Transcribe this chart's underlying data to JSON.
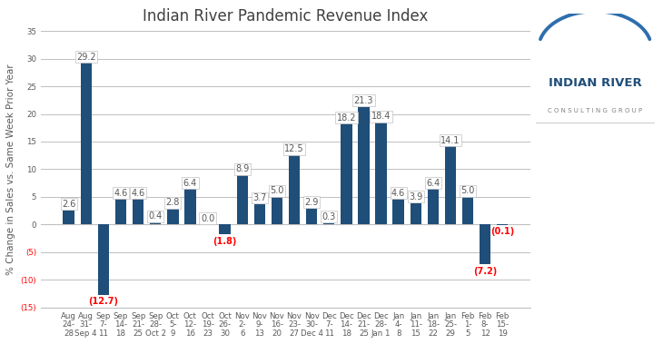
{
  "title": "Indian River Pandemic Revenue Index",
  "ylabel": "% Change in Sales vs. Same Week Prior Year",
  "categories": [
    "Aug\n24-\n28",
    "Aug\n31-\nSep 4",
    "Sep\n7-\n11",
    "Sep\n14-\n18",
    "Sep\n21-\n25",
    "Sep\n28-\nOct 2",
    "Oct\n5-\n9",
    "Oct\n12-\n16",
    "Oct\n19-\n23",
    "Oct\n26-\n30",
    "Nov\n2-\n6",
    "Nov\n9-\n13",
    "Nov\n16-\n20",
    "Nov\n23-\n27",
    "Nov\n30-\nDec 4",
    "Dec\n7-\n11",
    "Dec\n14-\n18",
    "Dec\n21-\n25",
    "Dec\n28-\nJan 1",
    "Jan\n4-\n8",
    "Jan\n11-\n15",
    "Jan\n18-\n22",
    "Jan\n25-\n29",
    "Feb\n1-\n5",
    "Feb\n8-\n12",
    "Feb\n15-\n19"
  ],
  "values": [
    2.6,
    29.2,
    -12.7,
    4.6,
    4.6,
    0.4,
    2.8,
    6.4,
    0.0,
    -1.8,
    8.9,
    3.7,
    5.0,
    12.5,
    2.9,
    0.3,
    18.2,
    21.3,
    18.4,
    4.6,
    3.9,
    6.4,
    14.1,
    5.0,
    -7.2,
    -0.1
  ],
  "bar_color": "#1F4E79",
  "label_color_pos": "#595959",
  "label_color_neg": "#FF0000",
  "ylim": [
    -15,
    35
  ],
  "yticks": [
    -15,
    -10,
    -5,
    0,
    5,
    10,
    15,
    20,
    25,
    30,
    35
  ],
  "background_color": "#FFFFFF",
  "grid_color": "#BFBFBF",
  "title_fontsize": 12,
  "label_fontsize": 7.0,
  "tick_fontsize": 6.2,
  "ylabel_fontsize": 7.5,
  "logo_main_color": "#1F4E79",
  "logo_sub_color": "#808080",
  "logo_arc_color": "#2E6EAE"
}
